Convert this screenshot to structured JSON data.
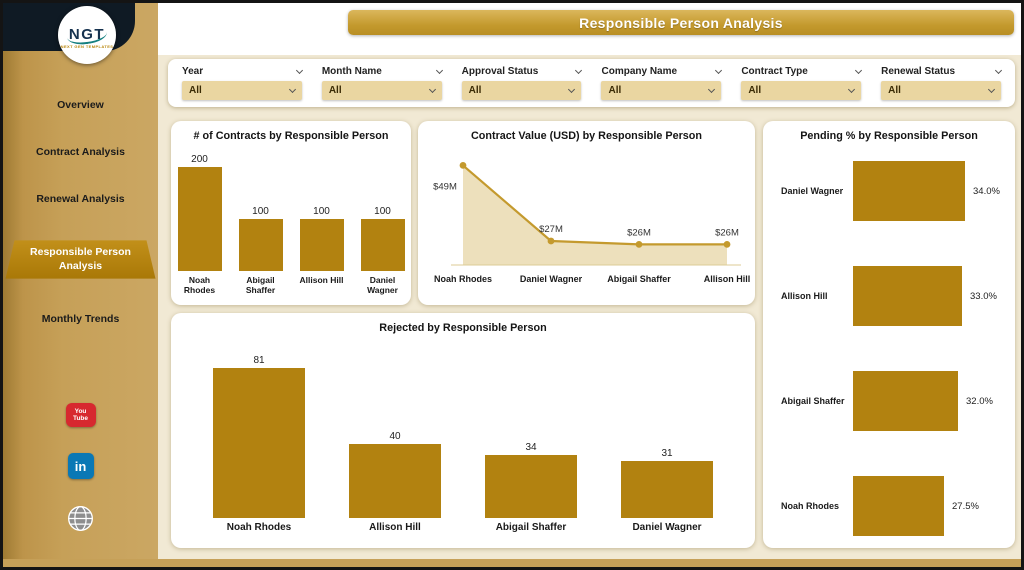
{
  "header": {
    "title": "Responsible Person Analysis"
  },
  "sidebar": {
    "logo": {
      "text": "NGT",
      "subtext": "NEXT GEN TEMPLATES"
    },
    "items": [
      {
        "label": "Overview"
      },
      {
        "label": "Contract Analysis"
      },
      {
        "label": "Renewal Analysis"
      },
      {
        "label": "Responsible Person Analysis"
      },
      {
        "label": "Monthly Trends"
      }
    ],
    "social": {
      "youtube_lines": [
        "You",
        "Tube"
      ],
      "linkedin": "in"
    }
  },
  "filters": [
    {
      "label": "Year",
      "value": "All"
    },
    {
      "label": "Month Name",
      "value": "All"
    },
    {
      "label": "Approval Status",
      "value": "All"
    },
    {
      "label": "Company Name",
      "value": "All"
    },
    {
      "label": "Contract Type",
      "value": "All"
    },
    {
      "label": "Renewal Status",
      "value": "All"
    }
  ],
  "colors": {
    "bar_gold": "#B28210",
    "sidebar_tan": "#C6A058",
    "header_gold": "#C49A2E",
    "cream": "#F1E9D4",
    "filter_box": "#EAD6A1",
    "line_gold": "#C49A2E",
    "area_fill": "#EBDDB5"
  },
  "chart_data": [
    {
      "type": "bar",
      "title": "# of Contracts by Responsible Person",
      "categories": [
        "Noah Rhodes",
        "Abigail Shaffer",
        "Allison Hill",
        "Daniel Wagner"
      ],
      "values": [
        200,
        100,
        100,
        100
      ],
      "ylim": [
        0,
        200
      ]
    },
    {
      "type": "line",
      "title": "Contract Value (USD) by Responsible Person",
      "categories": [
        "Noah Rhodes",
        "Daniel Wagner",
        "Abigail Shaffer",
        "Allison Hill"
      ],
      "values": [
        49,
        27,
        26,
        26
      ],
      "labels": [
        "$49M",
        "$27M",
        "$26M",
        "$26M"
      ],
      "area": true,
      "ylim": [
        20,
        50
      ]
    },
    {
      "type": "bar-horizontal",
      "title": "Pending % by Responsible Person",
      "categories": [
        "Daniel Wagner",
        "Allison Hill",
        "Abigail Shaffer",
        "Noah Rhodes"
      ],
      "values": [
        34.0,
        33.0,
        32.0,
        27.5
      ],
      "labels": [
        "34.0%",
        "33.0%",
        "32.0%",
        "27.5%"
      ],
      "xlim": [
        0,
        34
      ]
    },
    {
      "type": "bar",
      "title": "Rejected by Responsible Person",
      "categories": [
        "Noah Rhodes",
        "Allison Hill",
        "Abigail Shaffer",
        "Daniel Wagner"
      ],
      "values": [
        81,
        40,
        34,
        31
      ],
      "ylim": [
        0,
        81
      ]
    }
  ]
}
